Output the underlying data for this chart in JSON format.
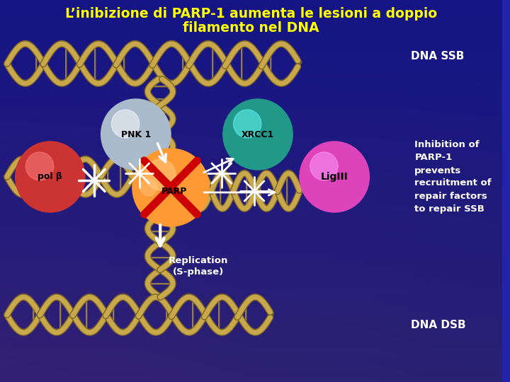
{
  "title_line1": "L’inibizione di PARP-1 aumenta le lesioni a doppio",
  "title_line2": "filamento nel DNA",
  "title_color": "#FFFF00",
  "bg_color": "#2222aa",
  "dna_ssb_label": "DNA SSB",
  "dna_dsb_label": "DNA DSB",
  "label_color": "#ffffff",
  "inhibition_text": "Inhibition of\nPARP-1\nprevents\nrecruitment of\nrepair factors\nto repair SSB",
  "pnk1_label": "PNK 1",
  "pol_beta_label": "pol β",
  "xrcc1_label": "XRCC1",
  "ligiii_label": "LigIII",
  "parp_label": "PARP",
  "replication_label": "Replication\n(S-phase)",
  "pol_beta_color": "#cc3333",
  "pnk1_color": "#aabbcc",
  "xrcc1_color": "#229988",
  "ligiii_color": "#dd44bb",
  "parp_color": "#ff9933",
  "inhibition_x_color": "#cc0000",
  "dna_color": "#c8a84b",
  "dna_shadow": "#7a6428",
  "arrow_color": "#ffffff",
  "asterisk_color": "#ffffff",
  "replication_text_color": "#ffffff"
}
